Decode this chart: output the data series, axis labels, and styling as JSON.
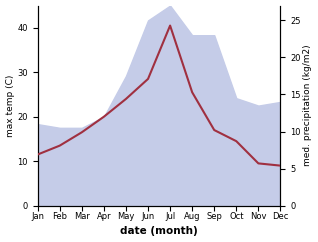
{
  "months": [
    "Jan",
    "Feb",
    "Mar",
    "Apr",
    "May",
    "Jun",
    "Jul",
    "Aug",
    "Sep",
    "Oct",
    "Nov",
    "Dec"
  ],
  "month_indices": [
    1,
    2,
    3,
    4,
    5,
    6,
    7,
    8,
    9,
    10,
    11,
    12
  ],
  "temp": [
    11.5,
    13.5,
    16.5,
    20.0,
    24.0,
    28.5,
    40.5,
    25.5,
    17.0,
    14.5,
    9.5,
    9.0
  ],
  "precip": [
    11.0,
    10.5,
    10.5,
    12.0,
    17.5,
    25.0,
    27.0,
    23.0,
    23.0,
    14.5,
    13.5,
    14.0
  ],
  "temp_color": "#a03040",
  "precip_fill_color": "#c5cce8",
  "ylabel_left": "max temp (C)",
  "ylabel_right": "med. precipitation (kg/m2)",
  "xlabel": "date (month)",
  "ylim_left": [
    0,
    45
  ],
  "ylim_right": [
    0,
    27
  ],
  "yticks_left": [
    0,
    10,
    20,
    30,
    40
  ],
  "yticks_right": [
    0,
    5,
    10,
    15,
    20,
    25
  ],
  "background_color": "#ffffff",
  "label_fontsize": 6.5,
  "xlabel_fontsize": 7.5,
  "tick_fontsize": 6.0
}
